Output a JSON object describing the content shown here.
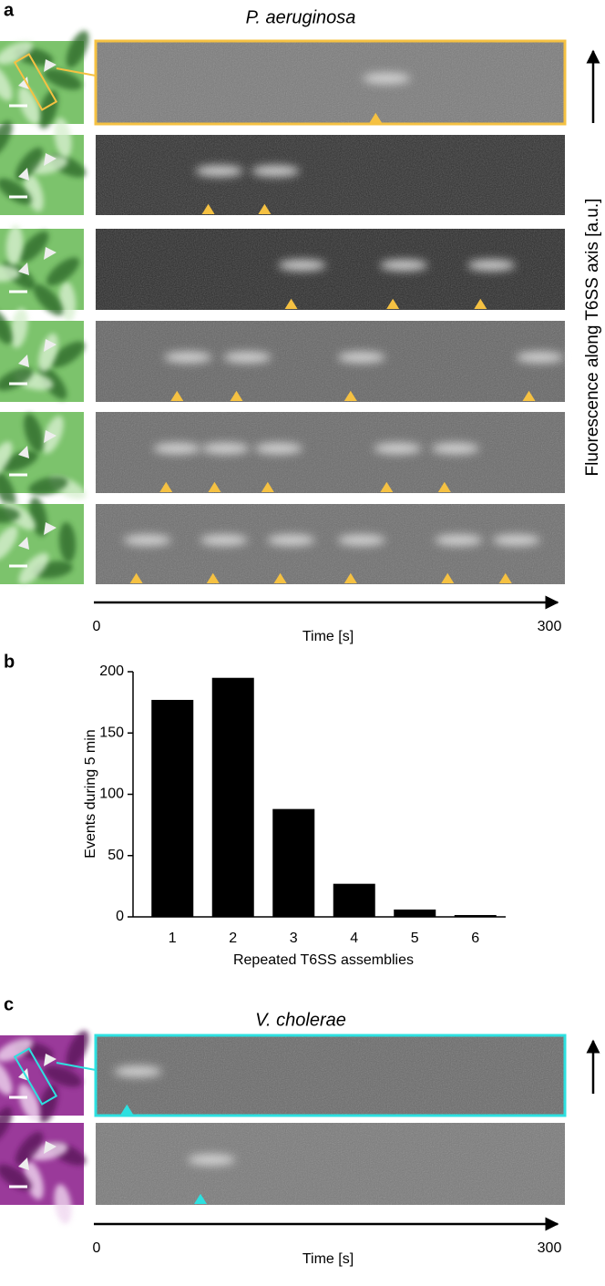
{
  "panel_a": {
    "label": "a",
    "title": "P. aeruginosa",
    "events_s": [
      [
        179
      ],
      [
        72,
        108
      ],
      [
        125,
        190,
        246
      ],
      [
        52,
        90,
        163,
        277
      ],
      [
        45,
        76,
        110,
        186,
        223
      ],
      [
        26,
        75,
        118,
        163,
        225,
        262
      ]
    ],
    "time_axis": {
      "start": 0,
      "end": 300,
      "label": "Time [s]"
    },
    "y_axis_label": "Fluorescence along T6SS axis [a.u.]"
  },
  "chart_data": {
    "type": "bar",
    "panel_label": "b",
    "categories": [
      "1",
      "2",
      "3",
      "4",
      "5",
      "6"
    ],
    "values": [
      177,
      195,
      88,
      27,
      6,
      1.5
    ],
    "color": "#000000",
    "xlabel": "Repeated T6SS assemblies",
    "ylabel": "Events during 5 min",
    "ylim": [
      0,
      200
    ],
    "yticks": [
      0,
      50,
      100,
      150,
      200
    ]
  },
  "panel_c": {
    "label": "c",
    "title": "V. cholerae",
    "events_s": [
      [
        20
      ],
      [
        67
      ]
    ],
    "time_axis": {
      "start": 0,
      "end": 300,
      "label": "Time [s]"
    }
  }
}
